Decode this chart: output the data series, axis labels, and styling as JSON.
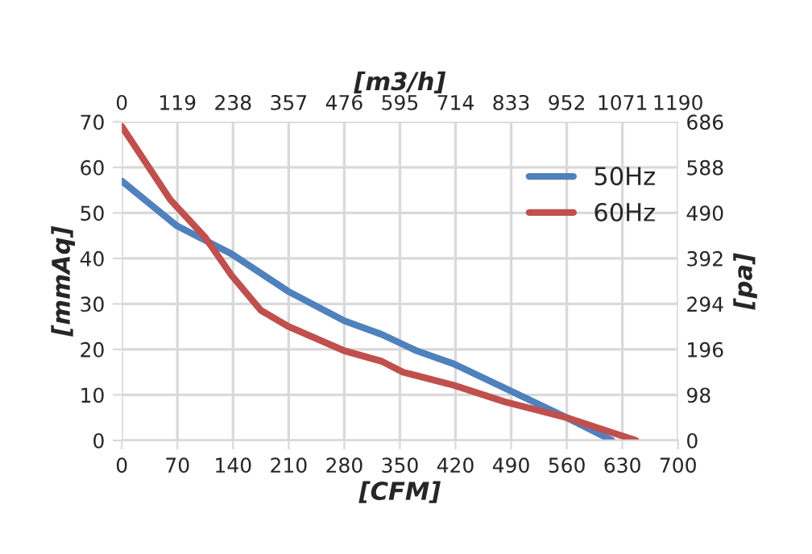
{
  "chart_data": {
    "type": "line",
    "xlabel": "[CFM]",
    "ylabel": "[mmAq]",
    "y2label": "[pa]",
    "x2label": "[m3/h]",
    "xlim": [
      0,
      700
    ],
    "xticks": [
      0,
      70,
      140,
      210,
      280,
      350,
      420,
      490,
      560,
      630,
      700
    ],
    "ylim": [
      0,
      70
    ],
    "yticks": [
      0,
      10,
      20,
      30,
      40,
      50,
      60,
      70
    ],
    "x2lim": [
      0,
      1190
    ],
    "x2ticks": [
      0,
      119,
      238,
      357,
      476,
      595,
      714,
      833,
      952,
      1071,
      1190
    ],
    "y2lim": [
      0,
      686
    ],
    "y2ticks": [
      0,
      98,
      196,
      294,
      392,
      490,
      588,
      686
    ],
    "grid": true,
    "legend": "top right",
    "marker": "none",
    "line_style": "solid",
    "series": [
      {
        "name": "50Hz",
        "color": "#4f81bd",
        "x": [
          0,
          69,
          138,
          209,
          280,
          327,
          371,
          418,
          482,
          560,
          617
        ],
        "values": [
          57,
          47.2,
          41,
          32.8,
          26.3,
          23.3,
          19.7,
          16.8,
          11.5,
          5,
          0
        ]
      },
      {
        "name": "60Hz",
        "color": "#c0504d",
        "x": [
          0,
          61,
          105,
          138,
          175,
          209,
          280,
          327,
          354,
          418,
          482,
          560,
          647
        ],
        "values": [
          69,
          52.9,
          44.6,
          36.3,
          28.6,
          25.1,
          19.7,
          17.4,
          15,
          12.1,
          8.5,
          5,
          0
        ]
      }
    ]
  }
}
